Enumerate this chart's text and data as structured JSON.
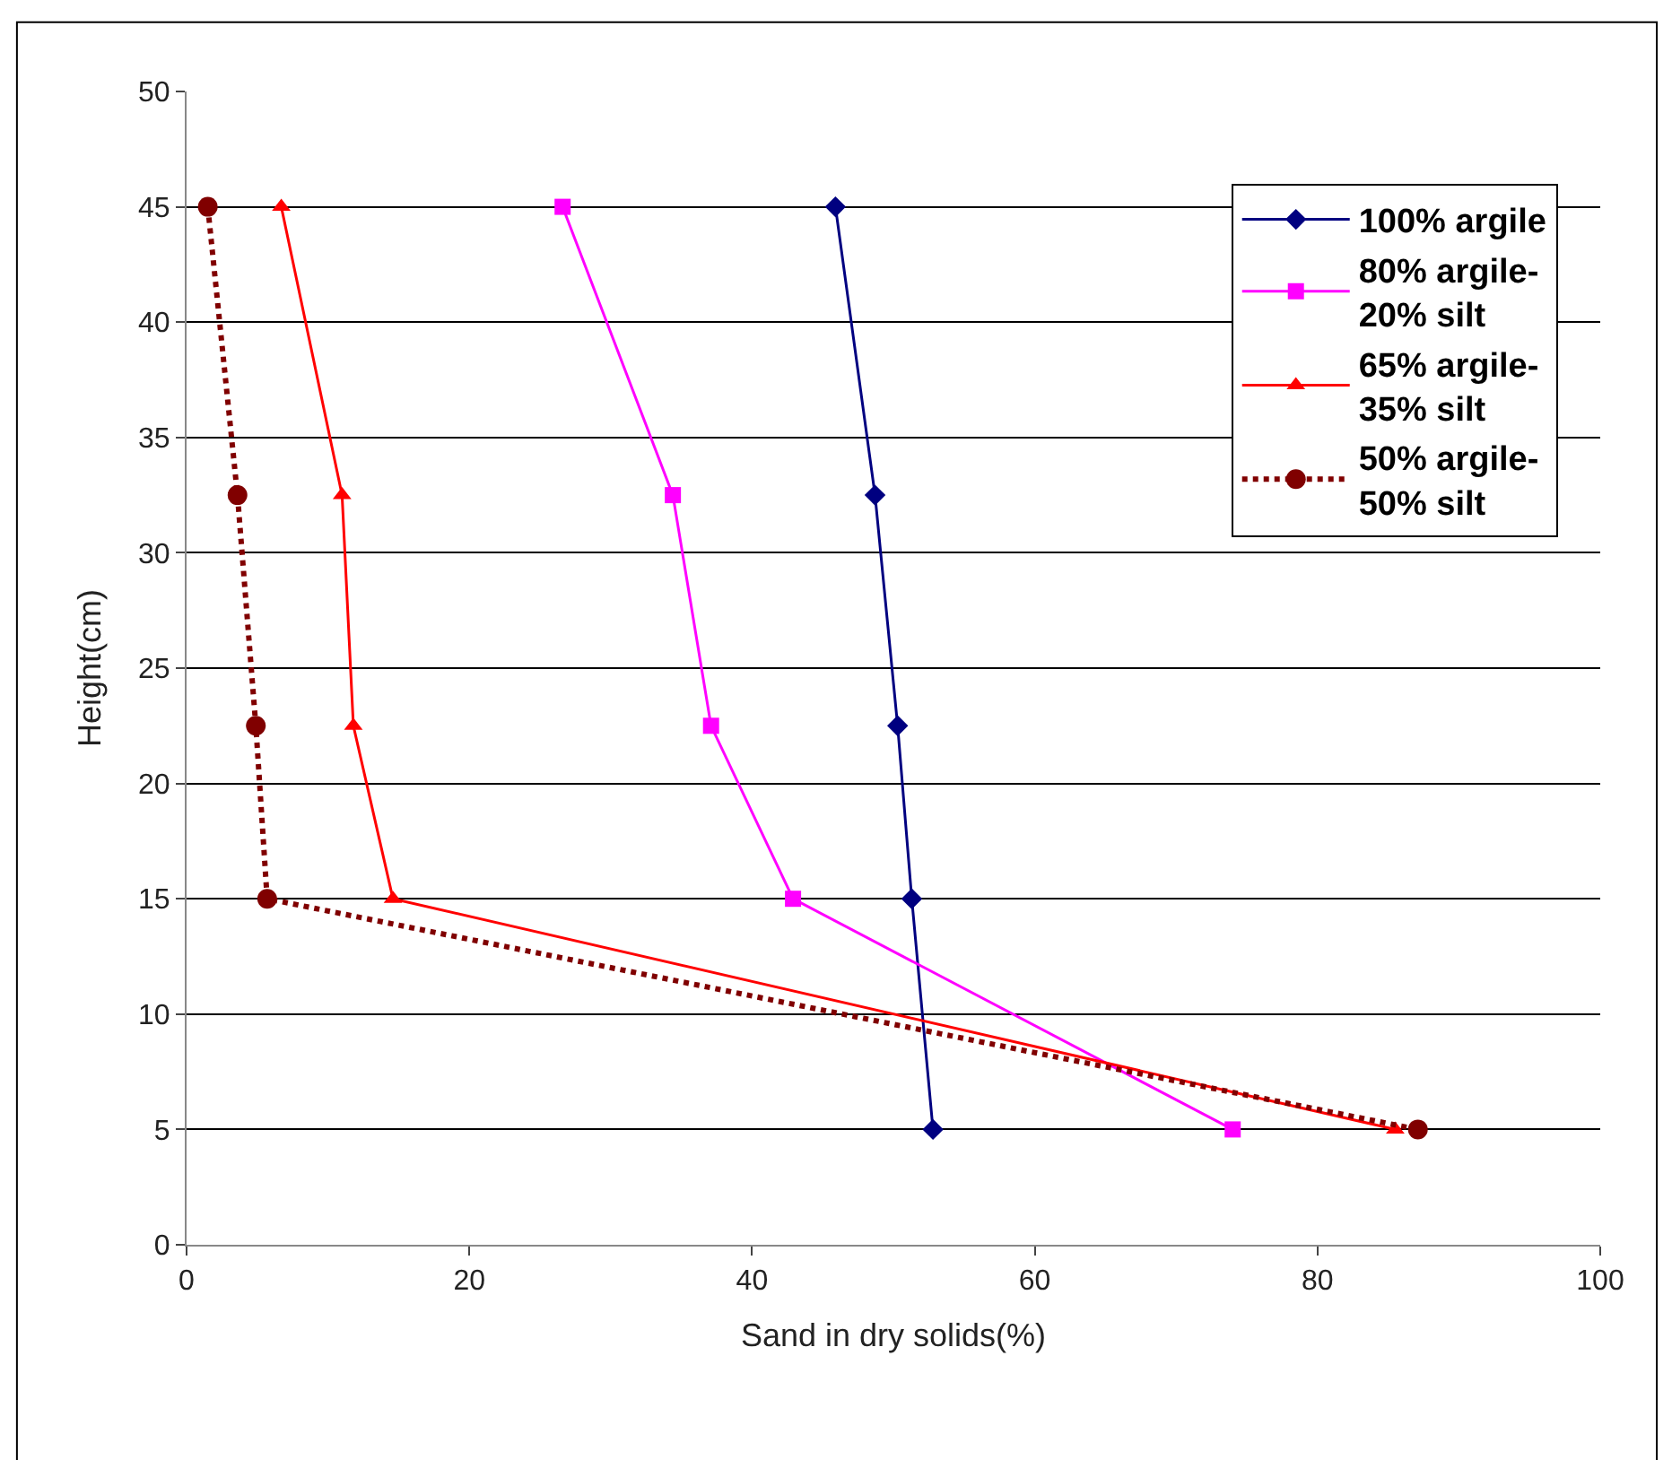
{
  "chart_data": {
    "type": "line",
    "xlabel": "Sand in dry solids(%)",
    "ylabel": "Height(cm)",
    "xlim": [
      0,
      100
    ],
    "xticks": [
      0,
      20,
      40,
      60,
      80,
      100
    ],
    "ylim": [
      0,
      50
    ],
    "yticks": [
      0,
      5,
      10,
      15,
      20,
      25,
      30,
      35,
      40,
      45,
      50
    ],
    "grid": "y",
    "legend": "top right",
    "series": [
      {
        "name": "100% argile",
        "color": "#000080",
        "marker": "diamond",
        "line_style": "solid",
        "x": [
          45.9,
          48.7,
          50.3,
          51.3,
          52.8
        ],
        "values": [
          45,
          32.5,
          22.5,
          15,
          5
        ]
      },
      {
        "name": "80% argile-\n20% silt",
        "color": "#ff00ff",
        "marker": "square",
        "line_style": "solid",
        "x": [
          26.6,
          34.4,
          37.1,
          42.9,
          74.0
        ],
        "values": [
          45,
          32.5,
          22.5,
          15,
          5
        ]
      },
      {
        "name": "65% argile-\n35% silt",
        "color": "#ff0000",
        "marker": "triangle",
        "line_style": "solid",
        "x": [
          6.7,
          11.0,
          11.8,
          14.6,
          85.5
        ],
        "values": [
          45,
          32.5,
          22.5,
          15,
          5
        ]
      },
      {
        "name": "50% argile-\n50% silt",
        "color": "#800000",
        "marker": "circle",
        "line_style": "dotted",
        "x": [
          1.5,
          3.6,
          4.9,
          5.7,
          87.1
        ],
        "values": [
          45,
          32.5,
          22.5,
          15,
          5
        ]
      }
    ]
  }
}
